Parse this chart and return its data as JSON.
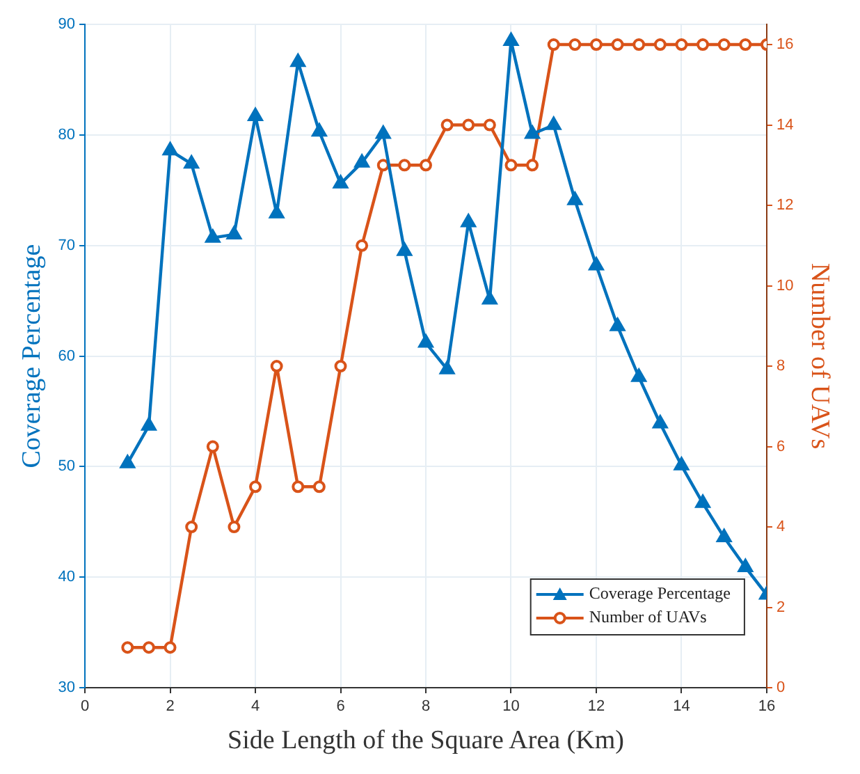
{
  "chart_data": {
    "type": "line",
    "xlabel": "Side Length of the Square Area (Km)",
    "ylabel": "Coverage Percentage",
    "y2label": "Number of UAVs",
    "x": [
      1,
      1.5,
      2,
      2.5,
      3,
      3.5,
      4,
      4.5,
      5,
      5.5,
      6,
      6.5,
      7,
      7.5,
      8,
      8.5,
      9,
      9.5,
      10,
      10.5,
      11,
      11.5,
      12,
      12.5,
      13,
      13.5,
      14,
      14.5,
      15,
      15.5,
      16
    ],
    "series": [
      {
        "name": "Coverage Percentage",
        "color": "#0072bd",
        "marker": "triangle",
        "values": [
          50.3,
          53.7,
          78.6,
          77.4,
          70.7,
          71,
          81.7,
          72.9,
          86.6,
          80.3,
          75.6,
          77.5,
          80.1,
          69.5,
          61.2,
          58.8,
          72.1,
          65.1,
          88.5,
          80.1,
          80.9,
          74.1,
          68.2,
          62.7,
          58.1,
          53.9,
          50.1,
          46.7,
          43.6,
          40.9,
          38.4
        ]
      },
      {
        "name": "Number of UAVs",
        "color": "#d95319",
        "marker": "circle",
        "axis": "y2",
        "values": [
          1,
          1,
          1,
          4,
          6,
          4,
          5,
          8,
          5,
          5,
          8,
          11,
          13,
          13,
          13,
          14,
          14,
          14,
          13,
          13,
          16,
          16,
          16,
          16,
          16,
          16,
          16,
          16,
          16,
          16,
          16
        ]
      }
    ],
    "xlim": [
      0,
      16
    ],
    "xticks": [
      0,
      2,
      4,
      6,
      8,
      10,
      12,
      14,
      16
    ],
    "ylim": [
      30,
      90
    ],
    "yticks": [
      30,
      40,
      50,
      60,
      70,
      80,
      90
    ],
    "y2lim": [
      0,
      16.5
    ],
    "y2ticks": [
      0,
      2,
      4,
      6,
      8,
      10,
      12,
      14,
      16
    ],
    "grid": true,
    "legend": "bottom right",
    "line_style": "solid"
  }
}
